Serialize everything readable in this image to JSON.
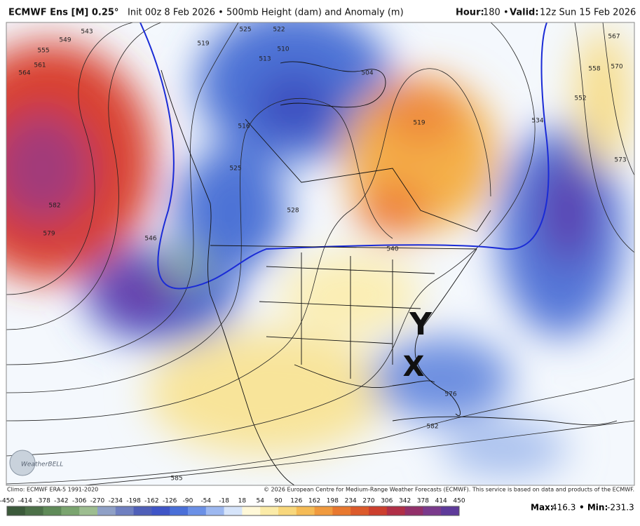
{
  "header": {
    "model": "ECMWF Ens [M] 0.25°",
    "description": "Init 00z 8 Feb 2026 • 500mb Height (dam) and Anomaly (m)",
    "hour_label": "Hour:",
    "hour_value": "180 •",
    "valid_label": "Valid:",
    "valid_value": "12z Sun 15 Feb 2026"
  },
  "map": {
    "contour_labels": [
      543,
      549,
      555,
      561,
      564,
      582,
      579,
      546,
      525,
      522,
      519,
      513,
      510,
      516,
      525,
      528,
      504,
      519,
      534,
      540,
      552,
      558,
      567,
      570,
      573,
      576,
      582,
      585
    ],
    "annotations": [
      "Y",
      "X"
    ],
    "logo": "WeatherBELL"
  },
  "footer": {
    "climo": "Climo: ECMWF ERA-5 1991-2020",
    "copyright": "© 2026 European Centre for Medium-Range Weather Forecasts (ECMWF). This service is based on data and products of the ECMWF."
  },
  "colorbar": {
    "labels": [
      -450,
      -414,
      -378,
      -342,
      -306,
      -270,
      -234,
      -198,
      -162,
      -126,
      -90,
      -54,
      -18,
      18,
      54,
      90,
      126,
      162,
      198,
      234,
      270,
      306,
      342,
      378,
      414,
      450
    ]
  },
  "stats": {
    "max_label": "Max:",
    "max": 416.3,
    "min_label": "• Min:",
    "min": -231.3
  }
}
